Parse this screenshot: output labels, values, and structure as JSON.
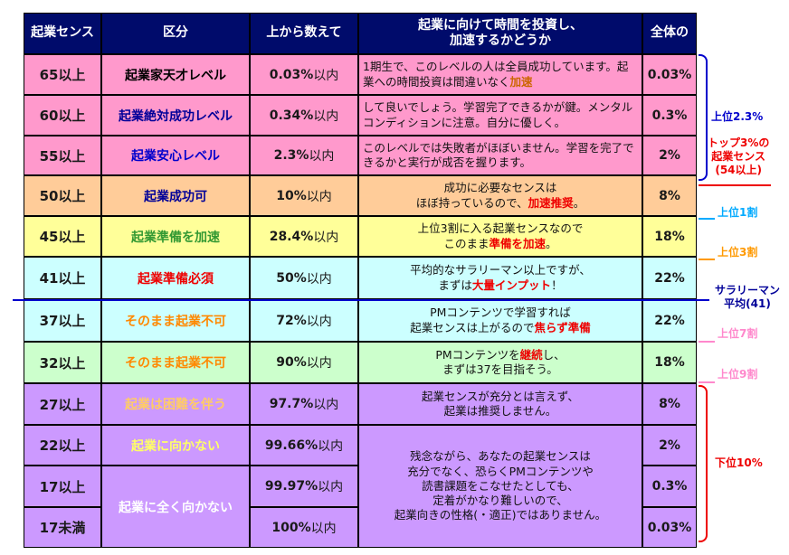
{
  "header": {
    "col1": "起業センス",
    "col2": "区分",
    "col3": "上から数えて",
    "col4_line1": "起業に向けて時間を投資し、",
    "col4_line2": "加速するかどうか",
    "col5": "全体の"
  },
  "rows": [
    {
      "score": "65以上",
      "level": "起業家天才レベル",
      "level_color": "#000000",
      "pct": "0.03%",
      "unit": "以内",
      "share": "0.03%",
      "bg": "#ff99cc"
    },
    {
      "score": "60以上",
      "level": "起業絶対成功レベル",
      "level_color": "#000099",
      "pct": "0.34%",
      "unit": "以内",
      "share": "0.3%",
      "bg": "#ff99cc"
    },
    {
      "score": "55以上",
      "level": "起業安心レベル",
      "level_color": "#0000cc",
      "pct": "2.3%",
      "unit": "以内",
      "share": "2%",
      "bg": "#ff99cc"
    },
    {
      "score": "50以上",
      "level": "起業成功可",
      "level_color": "#000099",
      "pct": "10%",
      "unit": "以内",
      "share": "8%",
      "bg": "#ffcc99"
    },
    {
      "score": "45以上",
      "level": "起業準備を加速",
      "level_color": "#339933",
      "pct": "28.4%",
      "unit": "以内",
      "share": "18%",
      "bg": "#ffff99"
    },
    {
      "score": "41以上",
      "level": "起業準備必須",
      "level_color": "#ee0000",
      "pct": "50%",
      "unit": "以内",
      "share": "22%",
      "bg": "#ccffff"
    },
    {
      "score": "37以上",
      "level": "そのまま起業不可",
      "level_color": "#ff8800",
      "pct": "72%",
      "unit": "以内",
      "share": "22%",
      "bg": "#ccffff"
    },
    {
      "score": "32以上",
      "level": "そのまま起業不可",
      "level_color": "#ff8800",
      "pct": "90%",
      "unit": "以内",
      "share": "18%",
      "bg": "#ccffcc"
    },
    {
      "score": "27以上",
      "level": "起業は困難を伴う",
      "level_color": "#ffcc66",
      "pct": "97.7%",
      "unit": "以内",
      "share": "8%",
      "bg": "#cc99ff"
    },
    {
      "score": "22以上",
      "level": "起業に向かない",
      "level_color": "#ffff66",
      "pct": "99.66%",
      "unit": "以内",
      "share": "2%",
      "bg": "#cc99ff"
    },
    {
      "score": "17以上",
      "level": "起業に全く向かない",
      "level_color": "#ffffff",
      "pct": "99.97%",
      "unit": "以内",
      "share": "0.3%",
      "bg": "#cc99ff"
    },
    {
      "score": "17未満",
      "level": "",
      "level_color": "#ffffff",
      "pct": "100%",
      "unit": "以内",
      "share": "0.03%",
      "bg": "#cc99ff"
    }
  ],
  "descriptions": {
    "d1_a": "1期生で、このレベルの人は全員成功しています。起業への時間投資は間違いなく",
    "d1_b": "加速",
    "d2": "して良いでしょう。学習完了できるかが鍵。メンタルコンディションに注意。自分に優しく。",
    "d3": "このレベルでは失敗者がほぼいません。学習を完了できるかと実行が成否を握ります。",
    "d4_a": "成功に必要なセンスは",
    "d4_b": "ほぼ持っているので、",
    "d4_c": "加速推奨",
    "d4_d": "。",
    "d5_a": "上位3割に入る起業センスなので",
    "d5_b": "このまま",
    "d5_c": "準備を加速",
    "d5_d": "。",
    "d6_a": "平均的なサラリーマン以上ですが、",
    "d6_b": "まずは",
    "d6_c": "大量インプット",
    "d6_d": "！",
    "d7_a": "PMコンテンツで学習すれば",
    "d7_b": "起業センスは上がるので",
    "d7_c": "焦らず準備",
    "d8_a": "PMコンテンツを",
    "d8_b": "継続",
    "d8_c": "し、",
    "d8_d": "まずは37を目指そう。",
    "d9_a": "起業センスが充分とは言えず、",
    "d9_b": "起業は推奨しません。",
    "d10_1": "残念ながら、あなたの起業センスは",
    "d10_2": "充分でなく、恐らくPMコンテンツや",
    "d10_3": "読書課題をこなせたとしても、",
    "d10_4": "定着がかなり難しいので、",
    "d10_5": "起業向きの性格(・適正)ではありません。"
  },
  "side": {
    "top23": "上位2.3%",
    "top3_l1": "トップ3%の",
    "top3_l2": "起業センス",
    "top3_l3": "(54以上)",
    "top10": "上位1割",
    "top30": "上位3割",
    "avg_l1": "サラリーマン",
    "avg_l2": "平均(41)",
    "top70": "上位7割",
    "top90": "上位9割",
    "bottom10": "下位10%"
  },
  "colors": {
    "header_bg": "#000b6b",
    "accent_red": "#ee0000",
    "bracket_blue": "#0000cc",
    "bracket_red": "#ee0000",
    "avg_line": "#0000cc",
    "label_cyan": "#00aaff",
    "label_orange": "#ff9900",
    "label_pink": "#ff88cc"
  }
}
